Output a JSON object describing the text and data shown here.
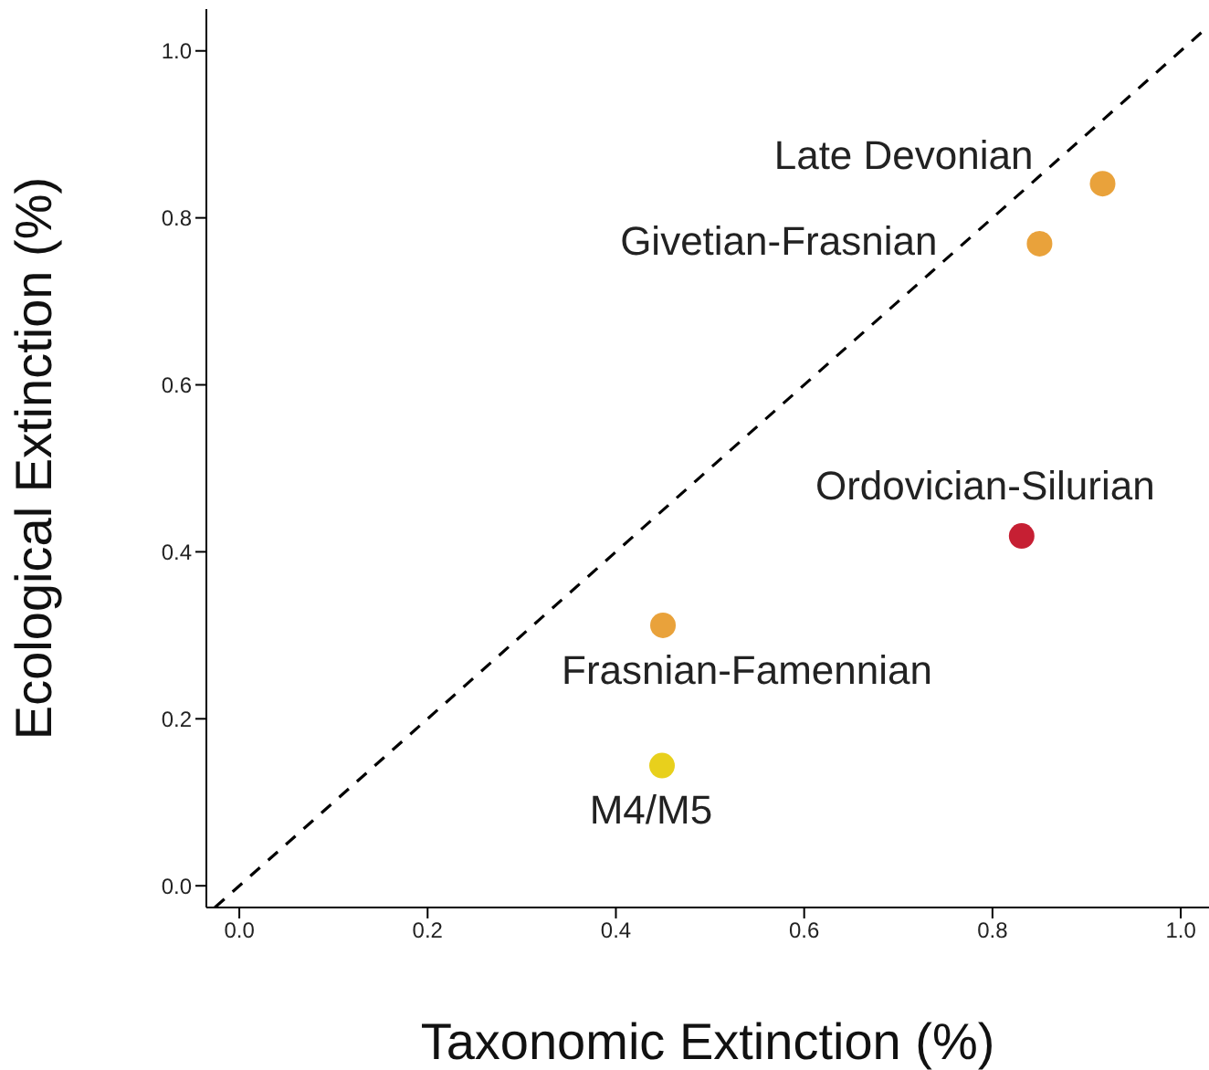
{
  "chart_data": {
    "type": "scatter",
    "xlabel": "Taxonomic Extinction (%)",
    "ylabel": "Ecological Extinction (%)",
    "xlim": [
      -0.035,
      1.03
    ],
    "ylim": [
      -0.026,
      1.05
    ],
    "xticks": [
      {
        "value": 0,
        "label": "0.0"
      },
      0.2,
      0.4,
      0.6,
      0.8,
      {
        "value": 1,
        "label": "1.0"
      }
    ],
    "yticks": [
      {
        "value": 0,
        "label": "0.0"
      },
      0.2,
      0.4,
      0.6,
      0.8,
      {
        "value": 1,
        "label": "1.0"
      }
    ],
    "grid": false,
    "legend": false,
    "marker": "circle",
    "series": [
      {
        "x": [
          0.917,
          0.85,
          0.831,
          0.45,
          0.449
        ],
        "values": [
          0.841,
          0.769,
          0.419,
          0.312,
          0.144
        ],
        "colors": [
          "#e9a23b",
          "#e9a23b",
          "#c61f33",
          "#e9a23b",
          "#e8d01c"
        ]
      },
      {
        "type": "line",
        "color": "#000000",
        "line_style": "dashed",
        "marker": "none",
        "x": [
          -0.026,
          1.03
        ],
        "values": [
          -0.026,
          1.03
        ]
      }
    ],
    "annotations": [
      {
        "text": "Late Devonian",
        "x": 0.917,
        "y": 0.841
      },
      {
        "text": "Givetian-Frasnian",
        "x": 0.85,
        "y": 0.769
      },
      {
        "text": "Ordovician-Silurian",
        "x": 0.831,
        "y": 0.419
      },
      {
        "text": "Frasnian-Famennian",
        "x": 0.45,
        "y": 0.312
      },
      {
        "text": "M4/M5",
        "x": 0.449,
        "y": 0.144
      }
    ]
  }
}
